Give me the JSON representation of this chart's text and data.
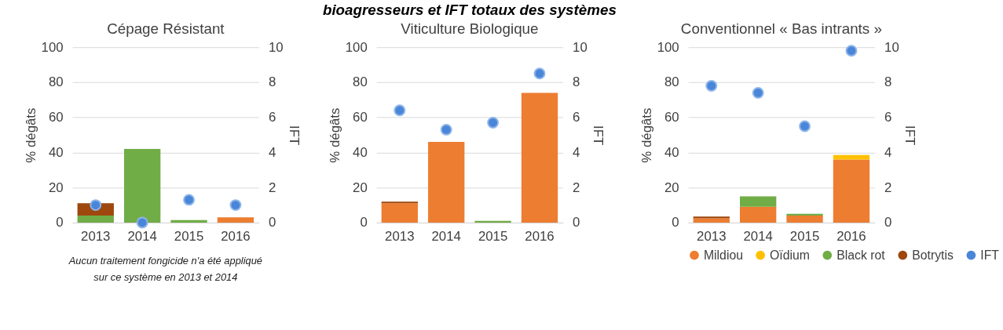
{
  "chart_data": [
    {
      "type": "bar",
      "subtitle": "Cépage Résistant",
      "stacked": true,
      "categories": [
        "2013",
        "2014",
        "2015",
        "2016"
      ],
      "ylabel": "% dégâts",
      "y2label": "IFT",
      "ylim": [
        0,
        100
      ],
      "yticks": [
        0,
        20,
        40,
        60,
        80,
        100
      ],
      "y2lim": [
        0,
        10
      ],
      "y2ticks": [
        0,
        2,
        4,
        6,
        8,
        10
      ],
      "grid": "y",
      "marker": "circle",
      "annotations": [
        "Aucun traitement fongicide n'a été appliqué sur ce système en 2013 et 2014"
      ],
      "series": [
        {
          "color": "#ed7d31",
          "values": [
            null,
            null,
            null,
            3
          ]
        },
        {
          "color": "#ffc000",
          "values": [
            null,
            null,
            null,
            null
          ]
        },
        {
          "color": "#70ad47",
          "values": [
            4,
            42,
            1.5,
            null
          ]
        },
        {
          "color": "#9e480e",
          "values": [
            7,
            null,
            null,
            null
          ]
        },
        {
          "color": "#4a86d8",
          "type": "scatter",
          "axis": "y2",
          "values": [
            1.0,
            0,
            1.3,
            1.0
          ]
        }
      ]
    },
    {
      "type": "bar",
      "title": "bioagresseurs et IFT totaux des systèmes",
      "subtitle": "Viticulture Biologique",
      "stacked": true,
      "categories": [
        "2013",
        "2014",
        "2015",
        "2016"
      ],
      "ylabel": "% dégâts",
      "y2label": "IFT",
      "ylim": [
        0,
        100
      ],
      "yticks": [
        0,
        20,
        40,
        60,
        80,
        100
      ],
      "y2lim": [
        0,
        10
      ],
      "y2ticks": [
        0,
        2,
        4,
        6,
        8,
        10
      ],
      "grid": "y",
      "marker": "circle",
      "series": [
        {
          "color": "#ed7d31",
          "values": [
            11,
            46,
            null,
            74
          ]
        },
        {
          "color": "#ffc000",
          "values": [
            null,
            null,
            null,
            null
          ]
        },
        {
          "color": "#70ad47",
          "values": [
            null,
            null,
            1,
            null
          ]
        },
        {
          "color": "#9e480e",
          "values": [
            1,
            null,
            null,
            null
          ]
        },
        {
          "color": "#4a86d8",
          "type": "scatter",
          "axis": "y2",
          "values": [
            6.4,
            5.3,
            5.7,
            8.5
          ]
        }
      ]
    },
    {
      "type": "bar",
      "subtitle": "Conventionnel « Bas intrants »",
      "stacked": true,
      "categories": [
        "2013",
        "2014",
        "2015",
        "2016"
      ],
      "ylabel": "% dégâts",
      "y2label": "IFT",
      "ylim": [
        0,
        100
      ],
      "yticks": [
        0,
        20,
        40,
        60,
        80,
        100
      ],
      "y2lim": [
        0,
        10
      ],
      "y2ticks": [
        0,
        2,
        4,
        6,
        8,
        10
      ],
      "grid": "y",
      "legend": "bottom",
      "marker": "circle",
      "series": [
        {
          "name": "Mildiou",
          "color": "#ed7d31",
          "values": [
            2.5,
            9,
            4,
            36
          ]
        },
        {
          "name": "Oïdium",
          "color": "#ffc000",
          "values": [
            null,
            null,
            null,
            2.5
          ]
        },
        {
          "name": "Black rot",
          "color": "#70ad47",
          "values": [
            null,
            6,
            1,
            null
          ]
        },
        {
          "name": "Botrytis",
          "color": "#9e480e",
          "values": [
            1,
            null,
            null,
            null
          ]
        },
        {
          "name": "IFT",
          "color": "#4a86d8",
          "type": "scatter",
          "axis": "y2",
          "values": [
            7.8,
            7.4,
            5.5,
            9.8
          ]
        }
      ]
    }
  ]
}
